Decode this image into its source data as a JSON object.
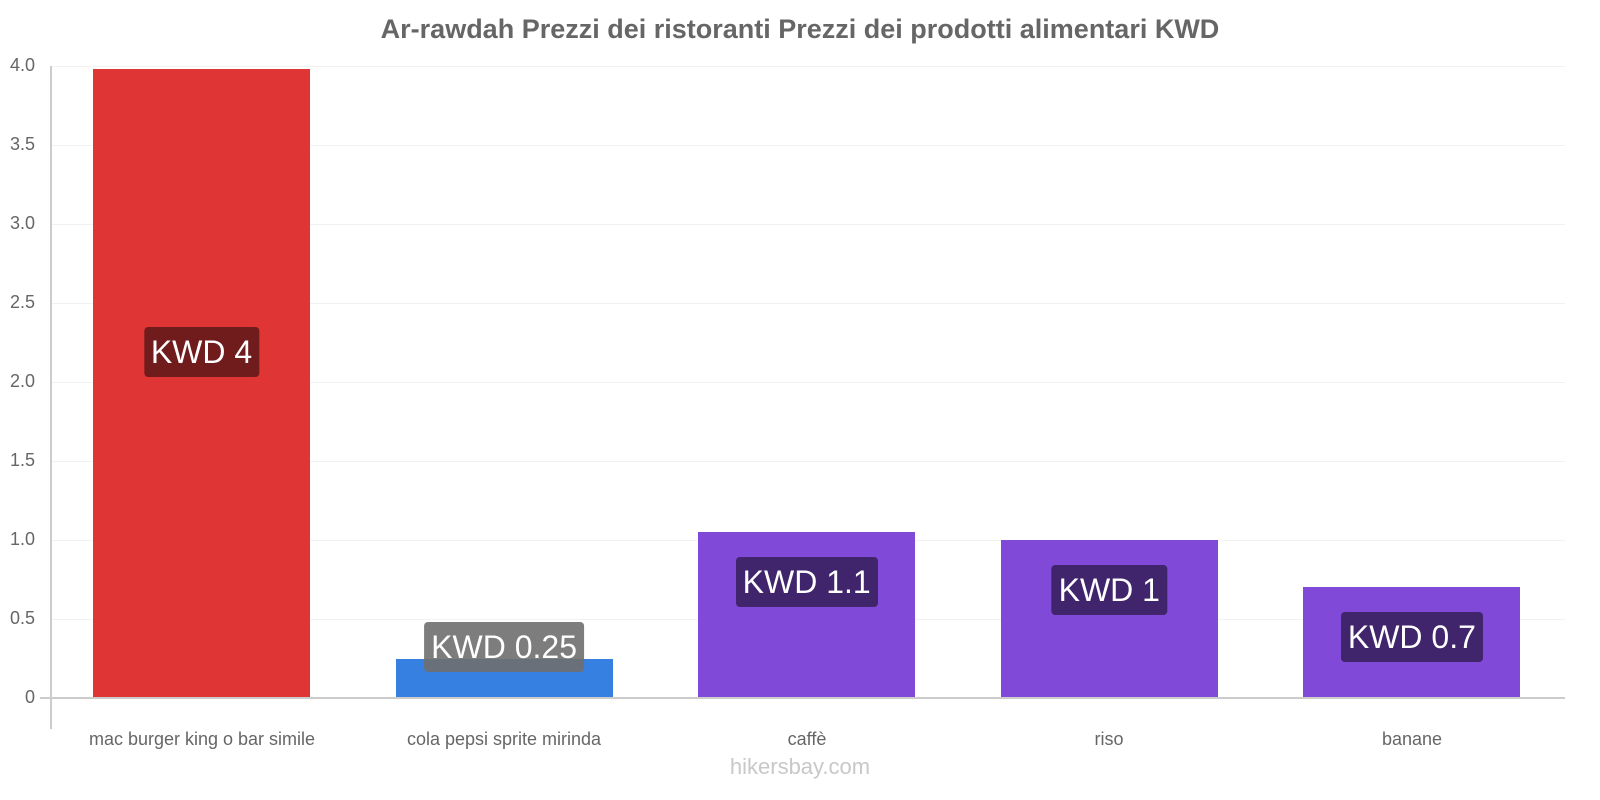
{
  "title": "Ar-rawdah Prezzi dei ristoranti Prezzi dei prodotti alimentari KWD",
  "watermark": "hikersbay.com",
  "yaxis": {
    "ticks": [
      "0",
      "0.5",
      "1.0",
      "1.5",
      "2.0",
      "2.5",
      "3.0",
      "3.5",
      "4.0"
    ]
  },
  "bars": [
    {
      "category": "mac burger king o bar simile",
      "value": 3.98,
      "label": "KWD 4",
      "color": "#e03535",
      "label_bg": "#701c1c"
    },
    {
      "category": "cola pepsi sprite mirinda",
      "value": 0.25,
      "label": "KWD 0.25",
      "color": "#3580e0",
      "label_bg": "#6f6f6f"
    },
    {
      "category": "caffè",
      "value": 1.05,
      "label": "KWD 1.1",
      "color": "#8149d8",
      "label_bg": "#40246c"
    },
    {
      "category": "riso",
      "value": 1.0,
      "label": "KWD 1",
      "color": "#8149d8",
      "label_bg": "#40246c"
    },
    {
      "category": "banane",
      "value": 0.7,
      "label": "KWD 0.7",
      "color": "#8149d8",
      "label_bg": "#40246c"
    }
  ],
  "chart_data": {
    "type": "bar",
    "title": "Ar-rawdah Prezzi dei ristoranti Prezzi dei prodotti alimentari KWD",
    "categories": [
      "mac burger king o bar simile",
      "cola pepsi sprite mirinda",
      "caffè",
      "riso",
      "banane"
    ],
    "values": [
      4,
      0.25,
      1.05,
      1.0,
      0.7
    ],
    "data_labels": [
      "KWD 4",
      "KWD 0.25",
      "KWD 1.1",
      "KWD 1",
      "KWD 0.7"
    ],
    "colors": [
      "#e03535",
      "#3580e0",
      "#8149d8",
      "#8149d8",
      "#8149d8"
    ],
    "xlabel": "",
    "ylabel": "",
    "ylim": [
      0,
      4.0
    ],
    "yticks": [
      0,
      0.5,
      1.0,
      1.5,
      2.0,
      2.5,
      3.0,
      3.5,
      4.0
    ],
    "grid": true,
    "legend": "none",
    "annotation": "hikersbay.com"
  }
}
